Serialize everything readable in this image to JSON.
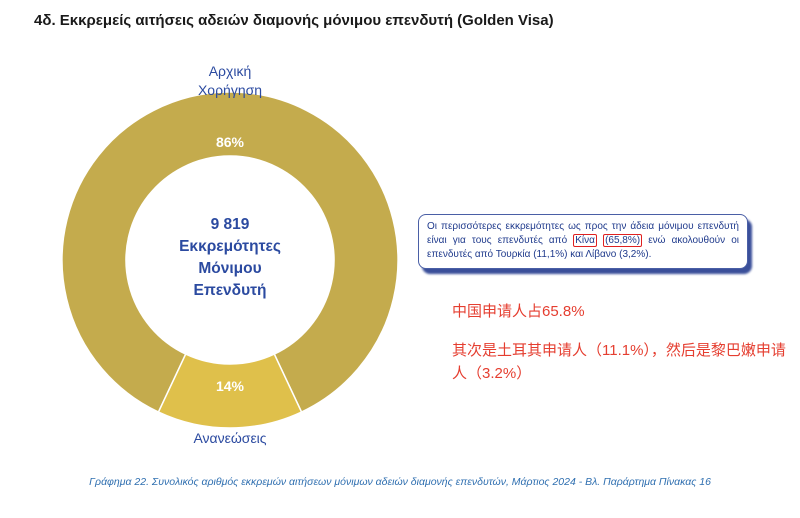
{
  "title": "4δ. Εκκρεμείς αιτήσεις αδειών διαμονής μόνιμου επενδυτή (Golden Visa)",
  "chart_data": {
    "type": "pie",
    "categories": [
      "Αρχική Χορήγηση",
      "Ανανεώσεις"
    ],
    "values": [
      86,
      14
    ],
    "value_labels": [
      "86%",
      "14%"
    ],
    "center_label": [
      "9 819",
      "Εκκρεμότητες",
      "Μόνιμου",
      "Επενδυτή"
    ],
    "colors": [
      "#c4ab4d",
      "#dfc04b"
    ]
  },
  "labels": {
    "main_line1": "Αρχική",
    "main_line2": "Χορήγηση",
    "minor": "Ανανεώσεις"
  },
  "info_box": {
    "part1": "Οι περισσότερες εκκρεμότητες ως προς την άδεια μόνιμου επενδυτή είναι για τους επενδυτές από",
    "highlight1": "Κίνα",
    "highlight2": "(65,8%)",
    "part2": "ενώ ακολουθούν οι επενδυτές από Τουρκία (11,1%) και Λίβανο (3,2%)."
  },
  "annotation_cn": {
    "line1": "中国申请人占65.8%",
    "line2": "其次是土耳其申请人（11.1%），然后是黎巴嫩申请人（3.2%）"
  },
  "caption": "Γράφημα 22. Συνολικός αριθμός εκκρεμών αιτήσεων μόνιμων αδειών διαμονής επενδυτών, Μάρτιος 2024 - Βλ. Παράρτημα  Πίνακας 16"
}
